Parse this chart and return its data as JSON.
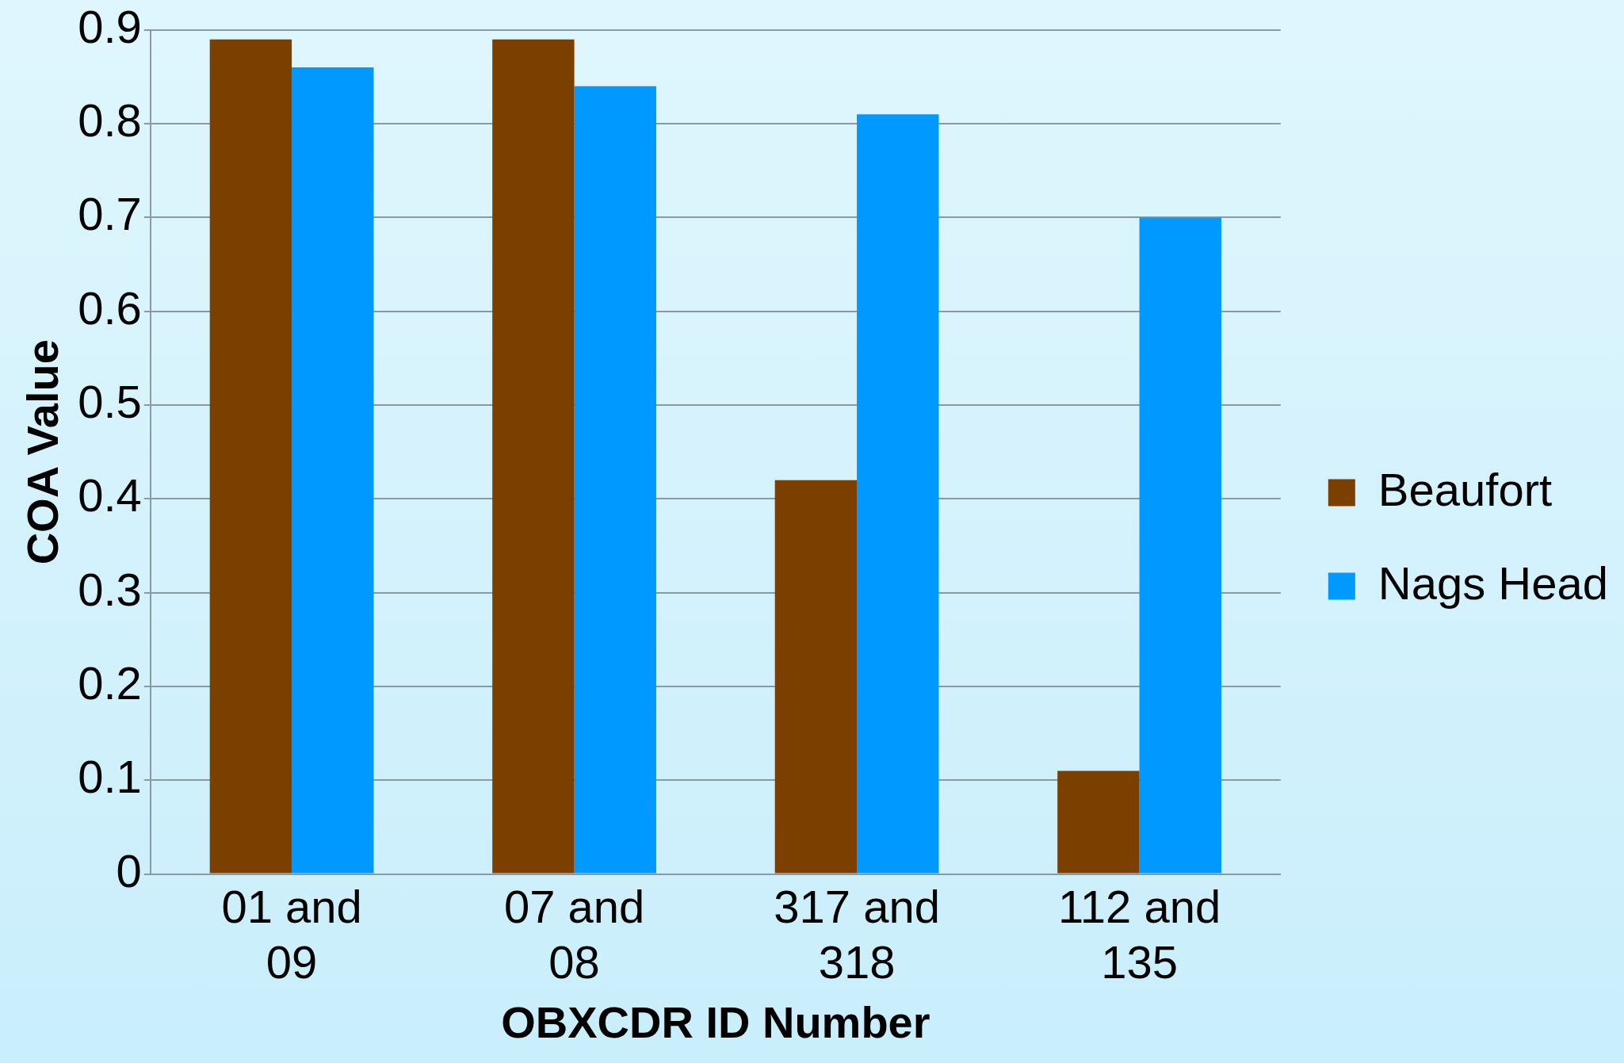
{
  "chart_data": {
    "type": "bar",
    "xlabel": "OBXCDR ID Number",
    "ylabel": "COA Value",
    "categories": [
      "01 and 09",
      "07 and 08",
      "317 and 318",
      "112 and 135"
    ],
    "series": [
      {
        "name": "Beaufort",
        "color": "#7b3f00",
        "values": [
          0.89,
          0.89,
          0.42,
          0.11
        ]
      },
      {
        "name": "Nags Head",
        "color": "#0099ff",
        "values": [
          0.86,
          0.84,
          0.81,
          0.7
        ]
      }
    ],
    "ylim": [
      0,
      0.9
    ],
    "yticks": [
      0,
      0.1,
      0.2,
      0.3,
      0.4,
      0.5,
      0.6,
      0.7,
      0.8,
      0.9
    ],
    "grid": "y",
    "legend": "right"
  }
}
